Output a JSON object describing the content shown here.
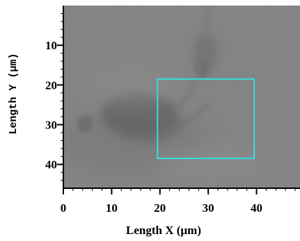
{
  "chart_data": {
    "type": "heatmap",
    "title": "",
    "xlabel": "Length X (µm)",
    "ylabel": "Length Y  (µm)",
    "xlim": [
      0,
      49
    ],
    "ylim": [
      46,
      0
    ],
    "x_ticks": [
      0,
      10,
      20,
      30,
      40
    ],
    "x_tick_labels": [
      "0",
      "10",
      "20",
      "30",
      "40"
    ],
    "y_ticks": [
      10,
      20,
      30,
      40
    ],
    "y_tick_labels": [
      "10",
      "20",
      "30",
      "40"
    ],
    "grid": false,
    "legend": "none",
    "image": {
      "description_colormap": "grayscale",
      "background_gray": "#878787"
    },
    "annotations": [
      {
        "type": "rectangle",
        "x": [
          19.5,
          39.5
        ],
        "y": [
          18.5,
          38.5
        ],
        "color": "#33e0e0"
      }
    ],
    "colors": {
      "axis": "#000000",
      "roi": "#33e0e0"
    }
  }
}
